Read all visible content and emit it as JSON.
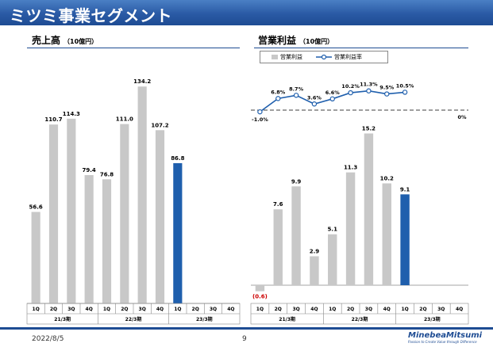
{
  "header": {
    "title": "ミツミ事業セグメント"
  },
  "colors": {
    "gray_bar": "#c8c8c8",
    "blue_bar": "#1f5fad",
    "line": "#1f5fad",
    "negative_label": "#cc0000",
    "header": "#1e4c93"
  },
  "sales": {
    "title": "売上高",
    "unit": "（10億円）"
  },
  "op": {
    "title": "営業利益",
    "unit": "（10億円）",
    "legend_bar": "営業利益",
    "legend_line": "営業利益率",
    "zero_label": "0%"
  },
  "footer": {
    "date": "2022/8/5",
    "page": "9",
    "logo": "MinebeaMitsumi",
    "tagline": "Passion to Create Value through Difference"
  },
  "chart_data": [
    {
      "type": "bar",
      "name": "売上高",
      "categories": [
        "1Q",
        "2Q",
        "3Q",
        "4Q",
        "1Q",
        "2Q",
        "3Q",
        "4Q",
        "1Q",
        "2Q",
        "3Q",
        "4Q"
      ],
      "groups": [
        "21/3期",
        "22/3期",
        "23/3期"
      ],
      "values": [
        56.6,
        110.7,
        114.3,
        79.4,
        76.8,
        111.0,
        134.2,
        107.2,
        86.8,
        null,
        null,
        null
      ],
      "labels": [
        "56.6",
        "110.7",
        "114.3",
        "79.4",
        "76.8",
        "111.0",
        "134.2",
        "107.2",
        "86.8",
        "",
        "",
        ""
      ],
      "highlight_index": 8
    },
    {
      "type": "bar",
      "name": "営業利益",
      "categories": [
        "1Q",
        "2Q",
        "3Q",
        "4Q",
        "1Q",
        "2Q",
        "3Q",
        "4Q",
        "1Q",
        "2Q",
        "3Q",
        "4Q"
      ],
      "groups": [
        "21/3期",
        "22/3期",
        "23/3期"
      ],
      "values": [
        -0.6,
        7.6,
        9.9,
        2.9,
        5.1,
        11.3,
        15.2,
        10.2,
        9.1,
        null,
        null,
        null
      ],
      "labels": [
        "(0.6)",
        "7.6",
        "9.9",
        "2.9",
        "5.1",
        "11.3",
        "15.2",
        "10.2",
        "9.1",
        "",
        "",
        ""
      ],
      "highlight_index": 8
    },
    {
      "type": "line",
      "name": "営業利益率",
      "values": [
        -1.0,
        6.8,
        8.7,
        3.6,
        6.6,
        10.2,
        11.3,
        9.5,
        10.5
      ],
      "labels": [
        "-1.0%",
        "6.8%",
        "8.7%",
        "3.6%",
        "6.6%",
        "10.2%",
        "11.3%",
        "9.5%",
        "10.5%"
      ]
    }
  ]
}
